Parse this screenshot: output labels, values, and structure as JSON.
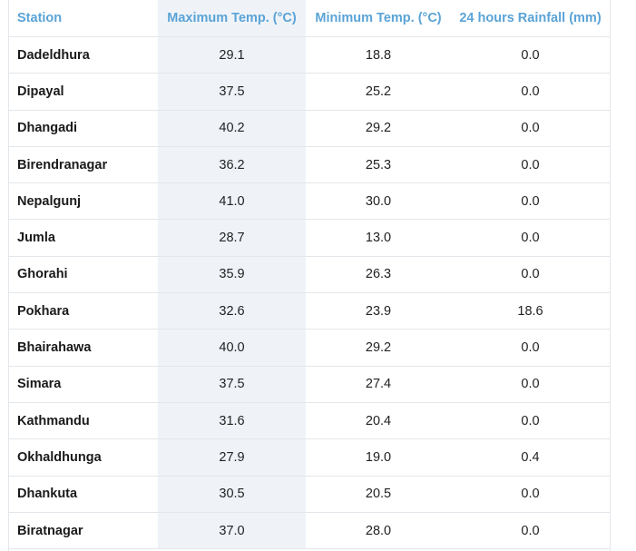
{
  "table": {
    "headers": {
      "station": "Station",
      "max_temp": "Maximum Temp. (°C)",
      "min_temp": "Minimum Temp. (°C)",
      "rainfall": "24 hours Rainfall (mm)"
    },
    "rows": [
      {
        "station": "Dadeldhura",
        "max": "29.1",
        "min": "18.8",
        "rain": "0.0"
      },
      {
        "station": "Dipayal",
        "max": "37.5",
        "min": "25.2",
        "rain": "0.0"
      },
      {
        "station": "Dhangadi",
        "max": "40.2",
        "min": "29.2",
        "rain": "0.0"
      },
      {
        "station": "Birendranagar",
        "max": "36.2",
        "min": "25.3",
        "rain": "0.0"
      },
      {
        "station": "Nepalgunj",
        "max": "41.0",
        "min": "30.0",
        "rain": "0.0"
      },
      {
        "station": "Jumla",
        "max": "28.7",
        "min": "13.0",
        "rain": "0.0"
      },
      {
        "station": "Ghorahi",
        "max": "35.9",
        "min": "26.3",
        "rain": "0.0"
      },
      {
        "station": "Pokhara",
        "max": "32.6",
        "min": "23.9",
        "rain": "18.6"
      },
      {
        "station": "Bhairahawa",
        "max": "40.0",
        "min": "29.2",
        "rain": "0.0"
      },
      {
        "station": "Simara",
        "max": "37.5",
        "min": "27.4",
        "rain": "0.0"
      },
      {
        "station": "Kathmandu",
        "max": "31.6",
        "min": "20.4",
        "rain": "0.0"
      },
      {
        "station": "Okhaldhunga",
        "max": "27.9",
        "min": "19.0",
        "rain": "0.4"
      },
      {
        "station": "Dhankuta",
        "max": "30.5",
        "min": "20.5",
        "rain": "0.0"
      },
      {
        "station": "Biratnagar",
        "max": "37.0",
        "min": "28.0",
        "rain": "0.0"
      }
    ]
  },
  "colors": {
    "header_text": "#5aa3d6",
    "highlight_column": "#eff3f8",
    "border": "#e3e6ea"
  }
}
